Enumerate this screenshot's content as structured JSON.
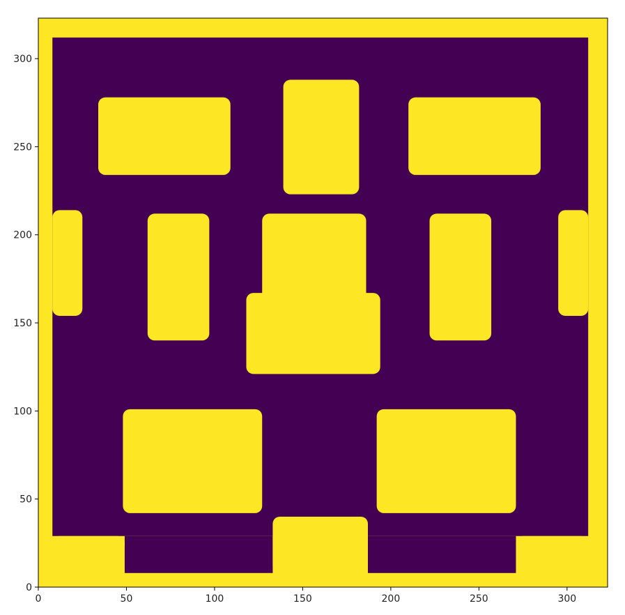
{
  "chart_data": {
    "type": "heatmap",
    "title": "",
    "xlabel": "",
    "ylabel": "",
    "xlim": [
      0,
      323
    ],
    "ylim": [
      0,
      323
    ],
    "origin": "lower",
    "grid": false,
    "colormap": "viridis",
    "colors": {
      "low": "#440154",
      "high": "#fde725",
      "axis": "#000000",
      "text": "#222222"
    },
    "x_ticks": [
      0,
      50,
      100,
      150,
      200,
      250,
      300
    ],
    "x_tick_labels": [
      "0",
      "50",
      "100",
      "150",
      "200",
      "250",
      "300"
    ],
    "y_ticks": [
      0,
      50,
      100,
      150,
      200,
      250,
      300
    ],
    "y_tick_labels": [
      "0",
      "50",
      "100",
      "150",
      "200",
      "250",
      "300"
    ],
    "background_value": 1,
    "regions": [
      {
        "name": "interior",
        "value": 0,
        "x0": 8,
        "x1": 312,
        "y0": 29,
        "y1": 312,
        "r": 0
      },
      {
        "name": "bottom-channel-left",
        "value": 0,
        "x0": 49,
        "x1": 133,
        "y0": 8,
        "y1": 29,
        "r": 0
      },
      {
        "name": "bottom-channel-right",
        "value": 0,
        "x0": 187,
        "x1": 271,
        "y0": 8,
        "y1": 29,
        "r": 0
      },
      {
        "name": "bottom-corner-left",
        "value": 1,
        "x0": 8,
        "x1": 49,
        "y0": 20,
        "y1": 29,
        "r": 4
      },
      {
        "name": "bottom-corner-right",
        "value": 1,
        "x0": 271,
        "x1": 312,
        "y0": 20,
        "y1": 29,
        "r": 4
      },
      {
        "name": "bottom-center-bump",
        "value": 1,
        "x0": 133,
        "x1": 187,
        "y0": 8,
        "y1": 40,
        "r": 4
      },
      {
        "name": "top-left-block",
        "value": 1,
        "x0": 34,
        "x1": 109,
        "y0": 234,
        "y1": 278,
        "r": 4
      },
      {
        "name": "top-center-block",
        "value": 1,
        "x0": 139,
        "x1": 182,
        "y0": 223,
        "y1": 288,
        "r": 4
      },
      {
        "name": "top-right-block",
        "value": 1,
        "x0": 210,
        "x1": 285,
        "y0": 234,
        "y1": 278,
        "r": 4
      },
      {
        "name": "left-edge-block",
        "value": 1,
        "x0": 8,
        "x1": 25,
        "y0": 154,
        "y1": 214,
        "r": 4
      },
      {
        "name": "right-edge-block",
        "value": 1,
        "x0": 295,
        "x1": 312,
        "y0": 154,
        "y1": 214,
        "r": 4
      },
      {
        "name": "mid-left-block",
        "value": 1,
        "x0": 62,
        "x1": 97,
        "y0": 140,
        "y1": 212,
        "r": 4
      },
      {
        "name": "mid-right-block",
        "value": 1,
        "x0": 222,
        "x1": 257,
        "y0": 140,
        "y1": 212,
        "r": 4
      },
      {
        "name": "center-upper-block",
        "value": 1,
        "x0": 127,
        "x1": 186,
        "y0": 159,
        "y1": 212,
        "r": 4
      },
      {
        "name": "center-lower-block",
        "value": 1,
        "x0": 118,
        "x1": 194,
        "y0": 121,
        "y1": 167,
        "r": 4
      },
      {
        "name": "bottom-left-block",
        "value": 1,
        "x0": 48,
        "x1": 127,
        "y0": 42,
        "y1": 101,
        "r": 4
      },
      {
        "name": "bottom-right-block",
        "value": 1,
        "x0": 192,
        "x1": 271,
        "y0": 42,
        "y1": 101,
        "r": 4
      }
    ]
  }
}
